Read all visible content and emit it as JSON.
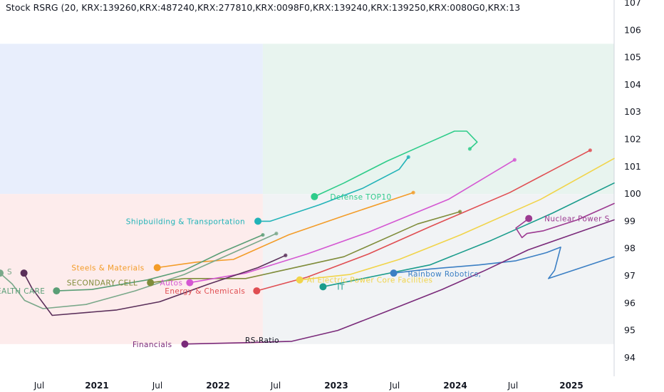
{
  "chart_data": {
    "type": "line",
    "title": "Stock RSRG (20, KRX:139260,KRX:487240,KRX:277810,KRX:0098F0,KRX:139240,KRX:139250,KRX:0080G0,KRX:13",
    "xlabel": "RS-Ratio",
    "ylabel": "",
    "x_tick_labels": [
      "Jul",
      "2021",
      "Jul",
      "2022",
      "Jul",
      "2023",
      "Jul",
      "2024",
      "Jul",
      "2025"
    ],
    "y_ticks": [
      94,
      95,
      96,
      97,
      98,
      99,
      100,
      101,
      102,
      103,
      104,
      105,
      106,
      107
    ],
    "ylim": [
      93.7,
      107.0
    ],
    "xlim": [
      0,
      100
    ],
    "x_axis_note": "horizontal axis shows RS-Ratio; tick labels are the time labels printed by the chart",
    "grid": false,
    "legend": "none (series labelled at their tails)",
    "quadrants": [
      {
        "name": "improving",
        "color": "#e8eefc"
      },
      {
        "name": "leading",
        "color": "#e8f4ef"
      },
      {
        "name": "lagging",
        "color": "#fdecec"
      },
      {
        "name": "weakening",
        "color": "#f1f3f5"
      }
    ],
    "quadrant_bounds": {
      "x_from": 0,
      "x_split": 42.8,
      "x_to": 100,
      "y_from": 94.5,
      "y_split": 100.0,
      "y_to": 105.5
    },
    "series": [
      {
        "name": "Defense TOP10",
        "color": "#2ecc8a",
        "points": [
          [
            51.2,
            99.9
          ],
          [
            56,
            100.4
          ],
          [
            63,
            101.2
          ],
          [
            70,
            101.9
          ],
          [
            74,
            102.3
          ],
          [
            76,
            102.3
          ],
          [
            77.7,
            101.9
          ],
          [
            76.5,
            101.65
          ]
        ]
      },
      {
        "name": "Shipbuilding & Transportation",
        "color": "#22b3b8",
        "points": [
          [
            42,
            99.0
          ],
          [
            44,
            99.0
          ],
          [
            52,
            99.6
          ],
          [
            59,
            100.2
          ],
          [
            65,
            100.9
          ],
          [
            66.5,
            101.35
          ]
        ]
      },
      {
        "name": "Steels & Materials",
        "color": "#f39c28",
        "points": [
          [
            25.6,
            97.3
          ],
          [
            32,
            97.5
          ],
          [
            38,
            97.6
          ],
          [
            47,
            98.5
          ],
          [
            56,
            99.2
          ],
          [
            67.3,
            100.05
          ]
        ]
      },
      {
        "name": "SECONDARY CELL",
        "color": "#7f8c3a",
        "points": [
          [
            24.5,
            96.75
          ],
          [
            30,
            96.9
          ],
          [
            40,
            96.9
          ],
          [
            46,
            97.2
          ],
          [
            56,
            97.7
          ],
          [
            68,
            98.9
          ],
          [
            74.9,
            99.35
          ]
        ]
      },
      {
        "name": "Autos",
        "color": "#d457d2",
        "points": [
          [
            30.9,
            96.75
          ],
          [
            40,
            97.1
          ],
          [
            50,
            97.8
          ],
          [
            60,
            98.6
          ],
          [
            73,
            99.8
          ],
          [
            83.8,
            101.25
          ]
        ]
      },
      {
        "name": "Energy & Chemicals",
        "color": "#e04e52",
        "points": [
          [
            41.8,
            96.45
          ],
          [
            50,
            96.95
          ],
          [
            60,
            97.8
          ],
          [
            70,
            98.8
          ],
          [
            83,
            100.05
          ],
          [
            96.1,
            101.6
          ]
        ]
      },
      {
        "name": "AI Electric Power Core Facilities",
        "color": "#f1d44a",
        "points": [
          [
            48.8,
            96.85
          ],
          [
            57,
            97.05
          ],
          [
            65,
            97.6
          ],
          [
            75,
            98.5
          ],
          [
            88,
            99.8
          ],
          [
            100,
            101.3
          ]
        ]
      },
      {
        "name": "IT",
        "color": "#1a9c8c",
        "points": [
          [
            52.6,
            96.6
          ],
          [
            58,
            96.85
          ],
          [
            70,
            97.4
          ],
          [
            80,
            98.3
          ],
          [
            90,
            99.3
          ],
          [
            100,
            100.4
          ]
        ]
      },
      {
        "name": "Rainbow Robotics,",
        "color": "#3b7fc4",
        "points": [
          [
            64.1,
            97.1
          ],
          [
            70,
            97.25
          ],
          [
            78,
            97.4
          ],
          [
            84,
            97.55
          ],
          [
            89,
            97.85
          ],
          [
            91.3,
            98.05
          ],
          [
            90.3,
            97.2
          ],
          [
            89.3,
            96.9
          ],
          [
            100,
            97.7
          ]
        ]
      },
      {
        "name": "Nuclear Power S",
        "color": "#9c3a91",
        "points": [
          [
            86.1,
            99.1
          ],
          [
            84,
            98.75
          ],
          [
            85,
            98.4
          ],
          [
            85.8,
            98.55
          ],
          [
            88.5,
            98.65
          ],
          [
            94,
            99.05
          ],
          [
            100,
            99.65
          ]
        ]
      },
      {
        "name": "Financials",
        "color": "#7a2a7a",
        "points": [
          [
            30.1,
            94.5
          ],
          [
            40,
            94.55
          ],
          [
            47.5,
            94.6
          ],
          [
            55,
            95.0
          ],
          [
            63,
            95.7
          ],
          [
            72,
            96.5
          ],
          [
            79,
            97.2
          ],
          [
            86,
            97.95
          ],
          [
            93,
            98.5
          ],
          [
            100,
            99.05
          ]
        ]
      },
      {
        "name": "HEALTH CARE",
        "color": "#5a9e76",
        "points": [
          [
            9.2,
            96.45
          ],
          [
            15,
            96.5
          ],
          [
            24,
            96.85
          ],
          [
            30,
            97.2
          ],
          [
            36,
            97.85
          ],
          [
            42.8,
            98.5
          ]
        ]
      },
      {
        "name": "S",
        "color": "#7aa88a",
        "points": [
          [
            0,
            97.1
          ],
          [
            2,
            96.7
          ],
          [
            4,
            96.1
          ],
          [
            7,
            95.8
          ],
          [
            14,
            95.95
          ],
          [
            22,
            96.45
          ],
          [
            30,
            97.05
          ],
          [
            38,
            97.85
          ],
          [
            45,
            98.55
          ]
        ]
      },
      {
        "name": "(unlabeled)",
        "color": "#5a2f5a",
        "points": [
          [
            3.9,
            97.1
          ],
          [
            5.2,
            96.55
          ],
          [
            8.5,
            95.55
          ],
          [
            19,
            95.75
          ],
          [
            26,
            96.05
          ],
          [
            34,
            96.7
          ],
          [
            42,
            97.3
          ],
          [
            46.5,
            97.75
          ]
        ]
      }
    ]
  }
}
